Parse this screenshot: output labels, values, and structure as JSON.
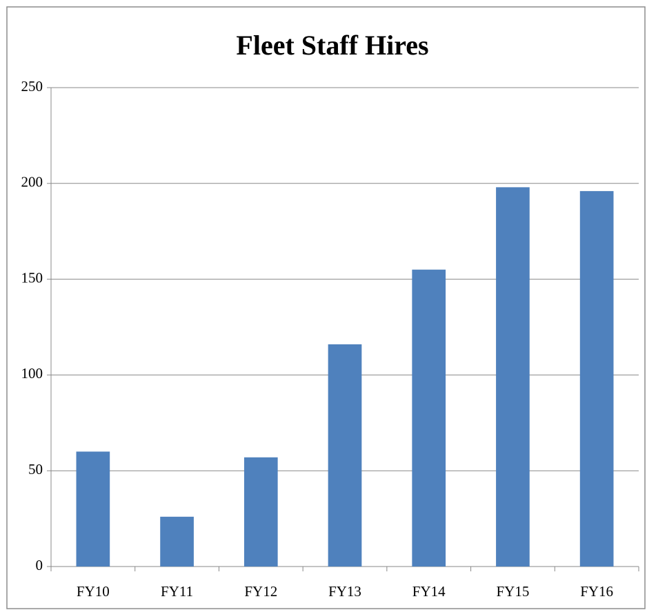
{
  "chart_data": {
    "type": "bar",
    "title": "Fleet Staff Hires",
    "categories": [
      "FY10",
      "FY11",
      "FY12",
      "FY13",
      "FY14",
      "FY15",
      "FY16"
    ],
    "values": [
      60,
      26,
      57,
      116,
      155,
      198,
      196
    ],
    "color": "#4f81bd",
    "ylim": [
      0,
      250
    ],
    "yticks": [
      0,
      50,
      100,
      150,
      200,
      250
    ],
    "grid": true
  }
}
